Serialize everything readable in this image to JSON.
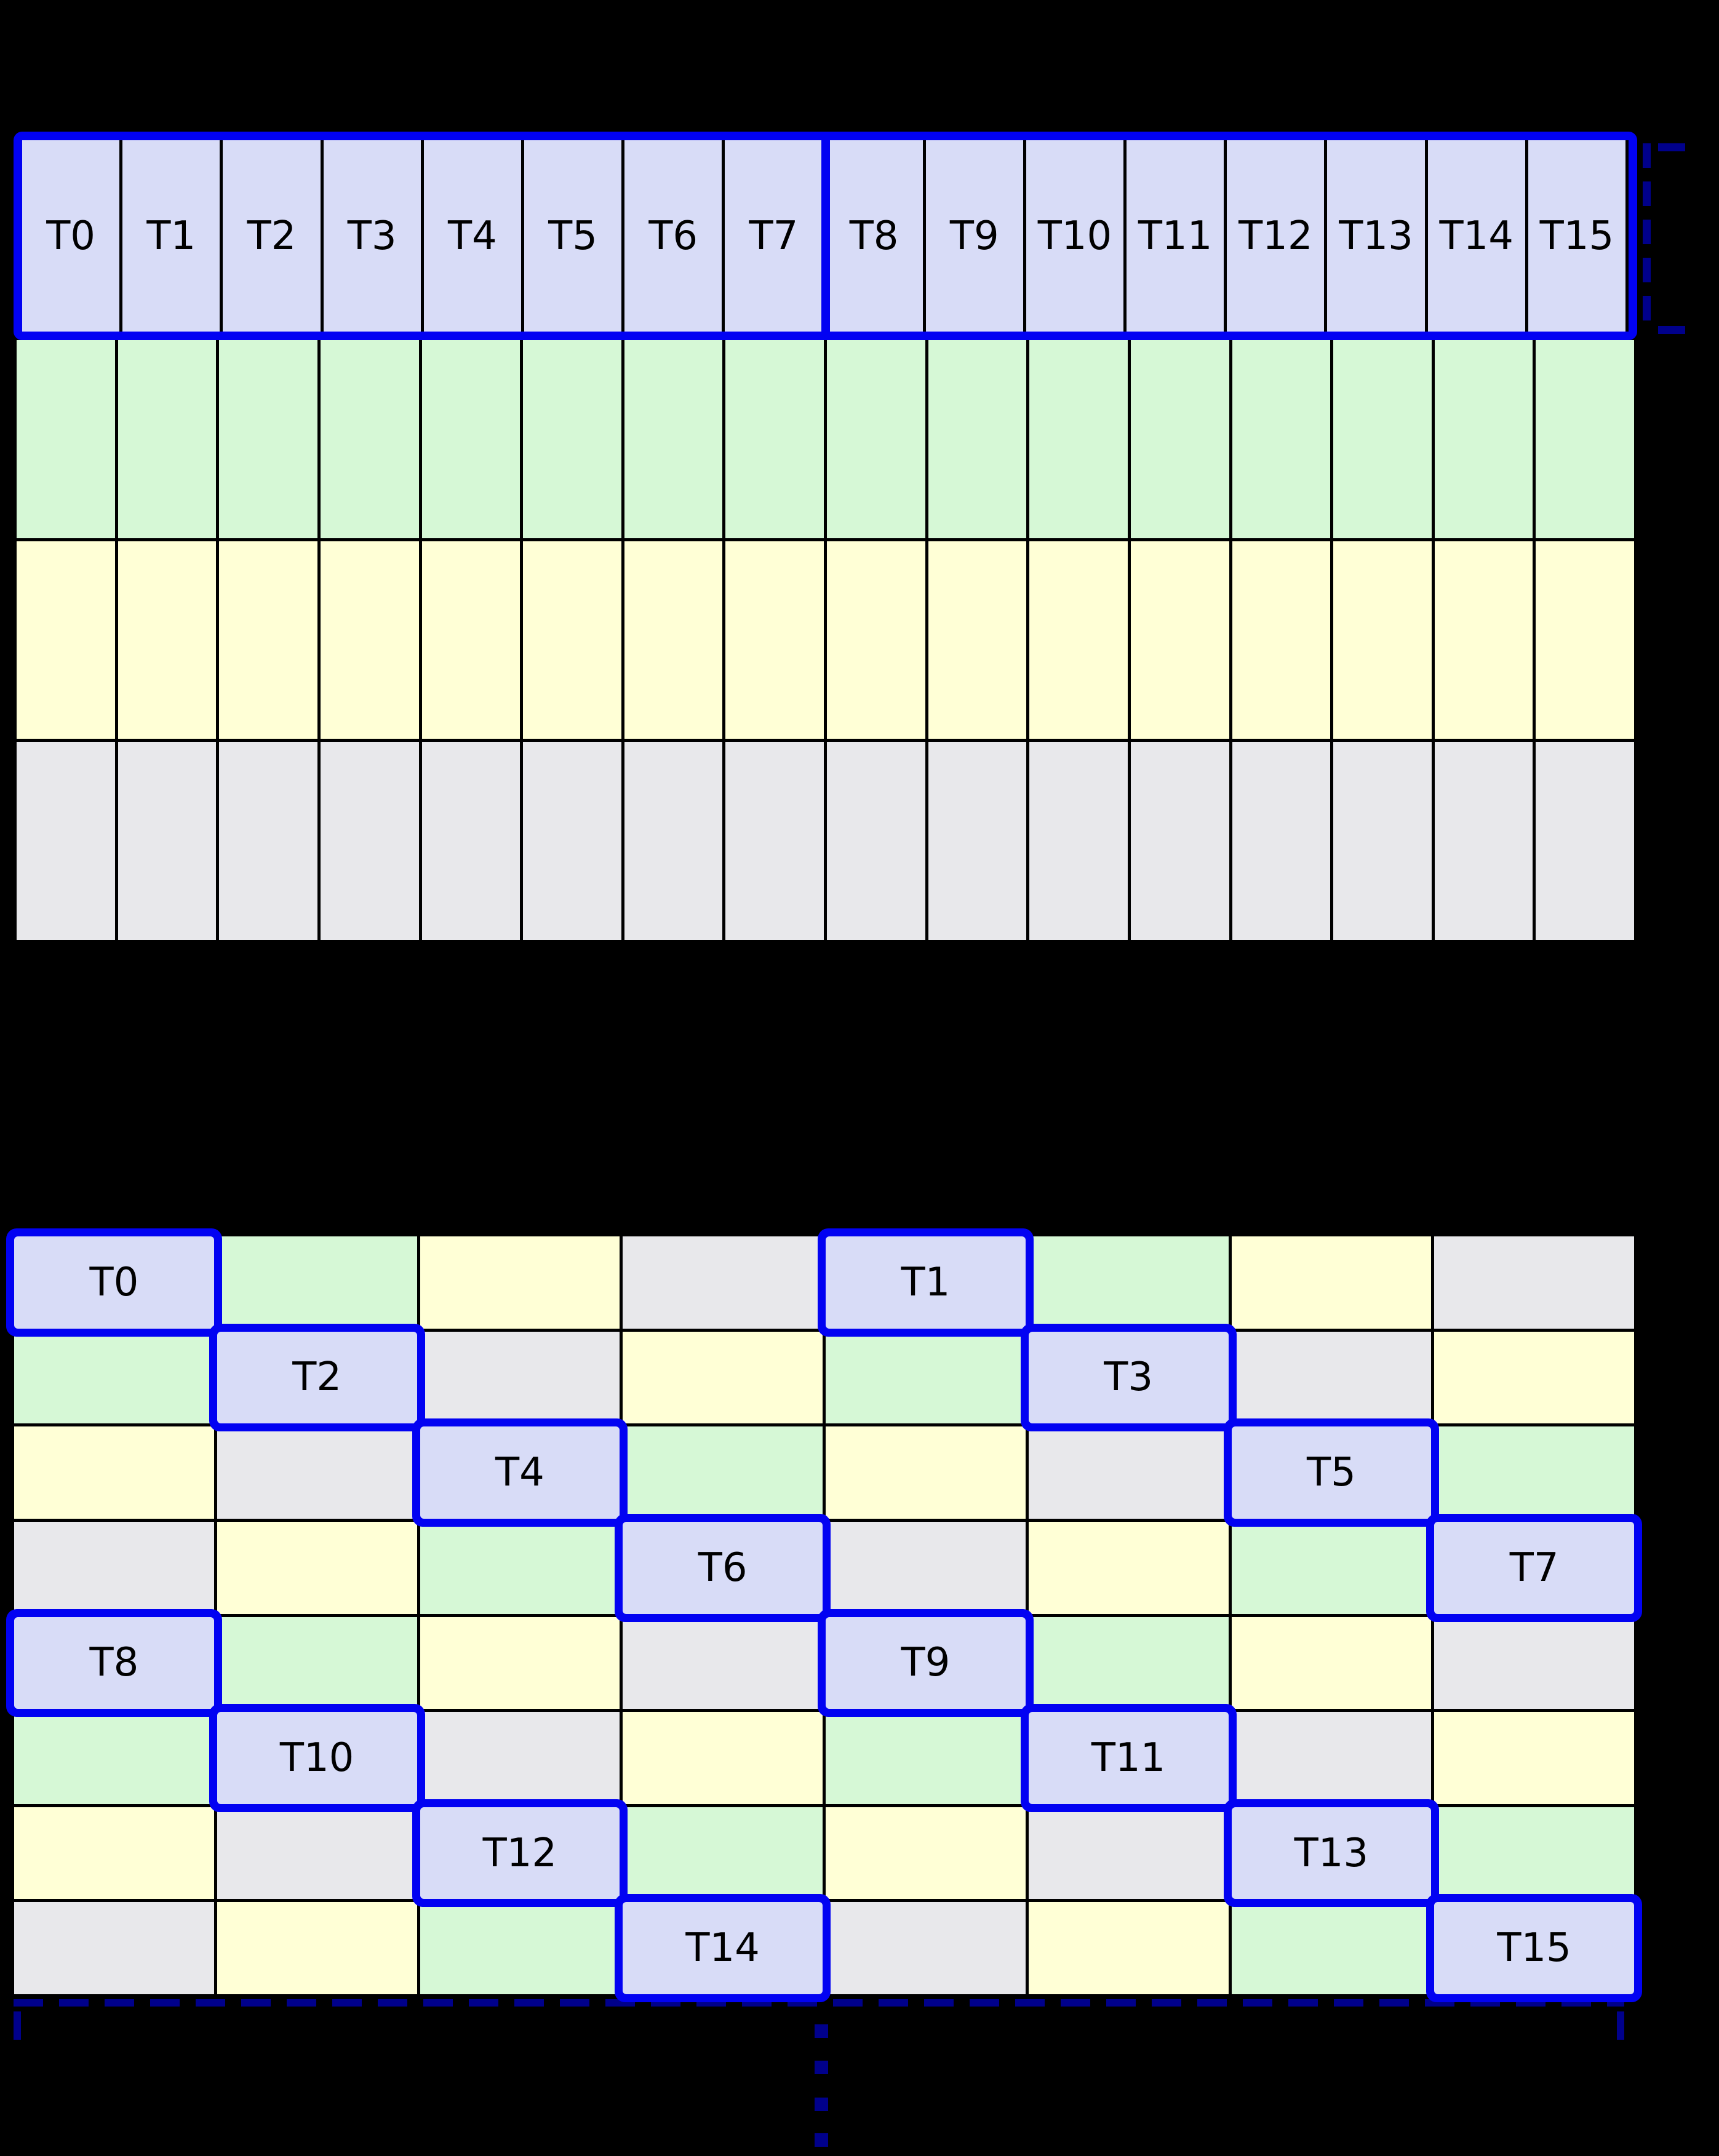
{
  "palette": {
    "T": "#d8dcf7",
    "G": "#d6f8d6",
    "Y": "#ffffd6",
    "X": "#e8e8eb"
  },
  "colors": {
    "background": "#000000",
    "grid_line": "#000000",
    "highlight_border": "#0202f2",
    "bracket": "#00008b",
    "label_text": "#000000"
  },
  "icons": {
    "header_bracket": "dashed-square-bracket-icon",
    "bottom_bracket": "dashed-span-bracket-icon",
    "continuation": "vertical-ellipsis-icon"
  },
  "top_grid": {
    "thread_labels": [
      "T0",
      "T1",
      "T2",
      "T3",
      "T4",
      "T5",
      "T6",
      "T7",
      "T8",
      "T9",
      "T10",
      "T11",
      "T12",
      "T13",
      "T14",
      "T15"
    ],
    "header_fill": "T",
    "warp_split_after_label": "T7",
    "memory_rows": [
      {
        "id": "green",
        "fill": "G"
      },
      {
        "id": "yellow",
        "fill": "Y"
      },
      {
        "id": "gray",
        "fill": "X"
      }
    ],
    "columns": 16
  },
  "bottom_grid": {
    "rows": 8,
    "columns": 8,
    "fill_pattern": [
      [
        "T",
        "G",
        "Y",
        "X",
        "T",
        "G",
        "Y",
        "X"
      ],
      [
        "G",
        "T",
        "X",
        "Y",
        "G",
        "T",
        "X",
        "Y"
      ],
      [
        "Y",
        "X",
        "T",
        "G",
        "Y",
        "X",
        "T",
        "G"
      ],
      [
        "X",
        "Y",
        "G",
        "T",
        "X",
        "Y",
        "G",
        "T"
      ],
      [
        "T",
        "G",
        "Y",
        "X",
        "T",
        "G",
        "Y",
        "X"
      ],
      [
        "G",
        "T",
        "X",
        "Y",
        "G",
        "T",
        "X",
        "Y"
      ],
      [
        "Y",
        "X",
        "T",
        "G",
        "Y",
        "X",
        "T",
        "G"
      ],
      [
        "X",
        "Y",
        "G",
        "T",
        "X",
        "Y",
        "G",
        "T"
      ]
    ],
    "labels": [
      [
        "T0",
        "",
        "",
        "",
        "T1",
        "",
        "",
        ""
      ],
      [
        "",
        "T2",
        "",
        "",
        "",
        "T3",
        "",
        ""
      ],
      [
        "",
        "",
        "T4",
        "",
        "",
        "",
        "T5",
        ""
      ],
      [
        "",
        "",
        "",
        "T6",
        "",
        "",
        "",
        "T7"
      ],
      [
        "T8",
        "",
        "",
        "",
        "T9",
        "",
        "",
        ""
      ],
      [
        "",
        "T10",
        "",
        "",
        "",
        "T11",
        "",
        ""
      ],
      [
        "",
        "",
        "T12",
        "",
        "",
        "",
        "T13",
        ""
      ],
      [
        "",
        "",
        "",
        "T14",
        "",
        "",
        "",
        "T15"
      ]
    ]
  }
}
